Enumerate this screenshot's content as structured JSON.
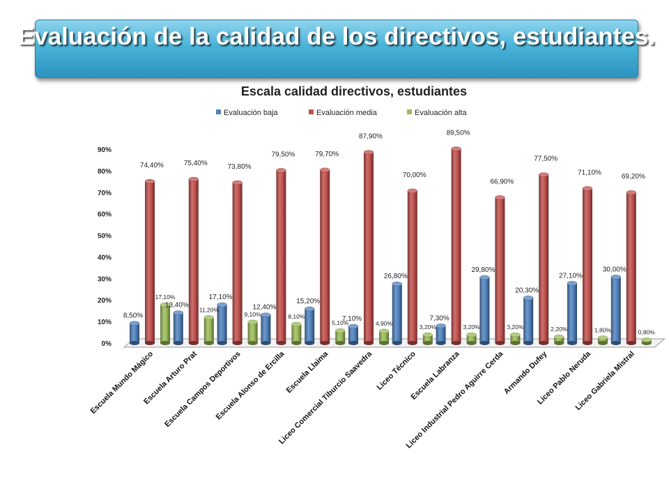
{
  "banner": {
    "title": "Evaluación de la calidad de los directivos, estudiantes."
  },
  "chart_data": {
    "type": "bar",
    "title": "Escala calidad directivos, estudiantes",
    "categories": [
      "Escuela Mundo Mágico",
      "Escuela Arturo Prat",
      "Escuela Campos Deportivos",
      "Escuela Alonso de Ercilla",
      "Escuela Llaima",
      "Liceo Comercial Tiburcio Saavedra",
      "Liceo Técnico",
      "Escuela Labranza",
      "Liceo Industrial Pedro Aguirre Cerda",
      "Armando Dufey",
      "Liceo Pablo Neruda",
      "Liceo Gabriela Mistral"
    ],
    "series": [
      {
        "name": "Evaluación baja",
        "color": "#4f81bd",
        "values": [
          8.5,
          13.4,
          17.1,
          12.4,
          15.2,
          7.1,
          26.8,
          7.3,
          29.8,
          20.3,
          27.1,
          30.0
        ],
        "labels": [
          "8,50%",
          "13,40%",
          "17,10%",
          "12,40%",
          "15,20%",
          "7,10%",
          "26,80%",
          "7,30%",
          "29,80%",
          "20,30%",
          "27,10%",
          "30,00%"
        ]
      },
      {
        "name": "Evaluación media",
        "color": "#c0504d",
        "values": [
          74.4,
          75.4,
          73.8,
          79.5,
          79.7,
          87.9,
          70.0,
          89.5,
          66.9,
          77.5,
          71.1,
          69.2
        ],
        "labels": [
          "74,40%",
          "75,40%",
          "73,80%",
          "79,50%",
          "79,70%",
          "87,90%",
          "70,00%",
          "89,50%",
          "66,90%",
          "77,50%",
          "71,10%",
          "69,20%"
        ]
      },
      {
        "name": "Evaluación alta",
        "color": "#9bbb59",
        "values": [
          17.1,
          11.2,
          9.1,
          8.1,
          5.1,
          4.9,
          3.2,
          3.2,
          3.2,
          2.2,
          1.8,
          0.8
        ],
        "labels": [
          "17,10%",
          "11,20%",
          "9,10%",
          "8,10%",
          "5,10%",
          "4,90%",
          "3,20%",
          "3,20%",
          "3,20%",
          "2,20%",
          "1,80%",
          "0,80%"
        ]
      }
    ],
    "yticks": [
      "0%",
      "10%",
      "20%",
      "30%",
      "40%",
      "50%",
      "60%",
      "70%",
      "80%",
      "90%"
    ],
    "ylim": [
      0,
      90
    ],
    "legend_position": "top",
    "grid": false,
    "style": "3d-cylinder"
  }
}
